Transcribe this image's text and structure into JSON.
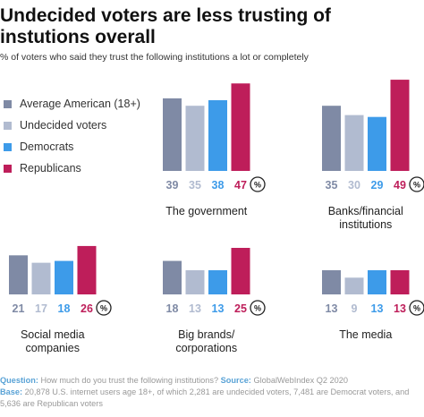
{
  "header": {
    "title": "Undecided voters are less trusting of instutions overall",
    "subtitle": "% of voters who said they trust the following institutions a lot or completely"
  },
  "legend": [
    {
      "label": "Average American (18+)",
      "color": "#7f8aa5"
    },
    {
      "label": "Undecided voters",
      "color": "#b1bbd0"
    },
    {
      "label": "Democrats",
      "color": "#3d9be9"
    },
    {
      "label": "Republicans",
      "color": "#be1e5a"
    }
  ],
  "percent_symbol": "%",
  "chart_data": {
    "type": "bar",
    "ylim": [
      0,
      50
    ],
    "series_names": [
      "Average American (18+)",
      "Undecided voters",
      "Democrats",
      "Republicans"
    ],
    "series_colors": [
      "#7f8aa5",
      "#b1bbd0",
      "#3d9be9",
      "#be1e5a"
    ],
    "panels": [
      {
        "label": "The government",
        "values": [
          39,
          35,
          38,
          47
        ]
      },
      {
        "label": "Banks/financial institutions",
        "values": [
          35,
          30,
          29,
          49
        ]
      },
      {
        "label": "Social media companies",
        "values": [
          21,
          17,
          18,
          26
        ]
      },
      {
        "label": "Big brands/ corporations",
        "values": [
          18,
          13,
          13,
          25
        ]
      },
      {
        "label": "The media",
        "values": [
          13,
          9,
          13,
          13
        ]
      }
    ]
  },
  "footer": {
    "question_label": "Question:",
    "question_text": "How much do you trust the following institutions?",
    "source_label": "Source:",
    "source_text": "GlobalWebIndex Q2 2020",
    "base_label": "Base:",
    "base_text": "20,878 U.S. internet users age 18+, of which 2,281 are undecided voters, 7,481 are Democrat voters, and 5,636 are Republican voters"
  }
}
